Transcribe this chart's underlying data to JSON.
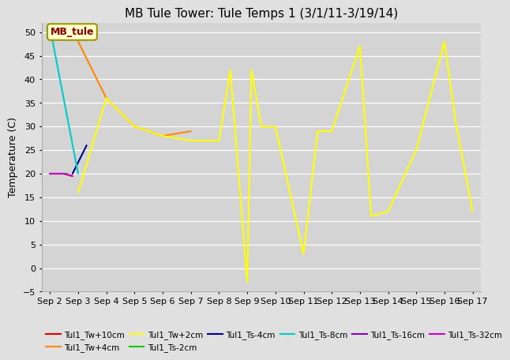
{
  "title": "MB Tule Tower: Tule Temps 1 (3/1/11-3/19/14)",
  "ylabel": "Temperature (C)",
  "ylim": [
    -5,
    52
  ],
  "yticks": [
    -5,
    0,
    5,
    10,
    15,
    20,
    25,
    30,
    35,
    40,
    45,
    50
  ],
  "xlim": [
    -0.3,
    15.3
  ],
  "x_labels": [
    "Sep 2",
    "Sep 3",
    "Sep 4",
    "Sep 5",
    "Sep 6",
    "Sep 7",
    "Sep 8",
    "Sep 9",
    "Sep 10",
    "Sep 11",
    "Sep 12",
    "Sep 13",
    "Sep 14",
    "Sep 15",
    "Sep 16",
    "Sep 17"
  ],
  "x_positions": [
    0,
    1,
    2,
    3,
    4,
    5,
    6,
    7,
    8,
    9,
    10,
    11,
    12,
    13,
    14,
    15
  ],
  "annotation_text": "MB_tule",
  "series": {
    "Tul1_Tw+10cm": {
      "color": "#dd0000",
      "x": [
        0,
        0.5,
        0.8
      ],
      "y": [
        20,
        20,
        19.5
      ]
    },
    "Tul1_Tw+4cm": {
      "color": "#ff8800",
      "x": [
        1,
        2,
        3,
        4,
        5
      ],
      "y": [
        48,
        36,
        30,
        28,
        29
      ]
    },
    "Tul1_Tw+2cm": {
      "color": "#ffff00",
      "x": [
        1,
        2,
        3,
        4,
        5,
        6,
        6.4,
        7,
        7.15,
        7.5,
        8,
        9,
        9.5,
        10,
        11,
        11.4,
        12,
        13,
        14,
        14.4,
        15
      ],
      "y": [
        16,
        36,
        30,
        28,
        27,
        27,
        42,
        -3,
        42,
        30,
        30,
        3,
        29,
        29,
        47,
        11,
        12,
        25,
        48,
        31,
        12
      ]
    },
    "Tul1_Ts-2cm": {
      "color": "#00cc00",
      "x": [
        0,
        0.6
      ],
      "y": [
        20,
        20
      ]
    },
    "Tul1_Ts-4cm": {
      "color": "#000088",
      "x": [
        0.8,
        1.3
      ],
      "y": [
        20,
        26
      ]
    },
    "Tul1_Ts-8cm": {
      "color": "#00cccc",
      "x": [
        0,
        1
      ],
      "y": [
        51,
        20
      ]
    },
    "Tul1_Ts-16cm": {
      "color": "#8800cc",
      "x": [
        0,
        0.5
      ],
      "y": [
        20,
        20
      ]
    },
    "Tul1_Ts-32cm": {
      "color": "#cc00cc",
      "x": [
        0,
        0.5,
        0.8
      ],
      "y": [
        20,
        20,
        19.5
      ]
    }
  },
  "legend_entries": [
    {
      "label": "Tul1_Tw+10cm",
      "color": "#dd0000"
    },
    {
      "label": "Tul1_Tw+4cm",
      "color": "#ff8800"
    },
    {
      "label": "Tul1_Tw+2cm",
      "color": "#ffff00"
    },
    {
      "label": "Tul1_Ts-2cm",
      "color": "#00cc00"
    },
    {
      "label": "Tul1_Ts-4cm",
      "color": "#000088"
    },
    {
      "label": "Tul1_Ts-8cm",
      "color": "#00cccc"
    },
    {
      "label": "Tul1_Ts-16cm",
      "color": "#8800cc"
    },
    {
      "label": "Tul1_Ts-32cm",
      "color": "#cc00cc"
    }
  ]
}
